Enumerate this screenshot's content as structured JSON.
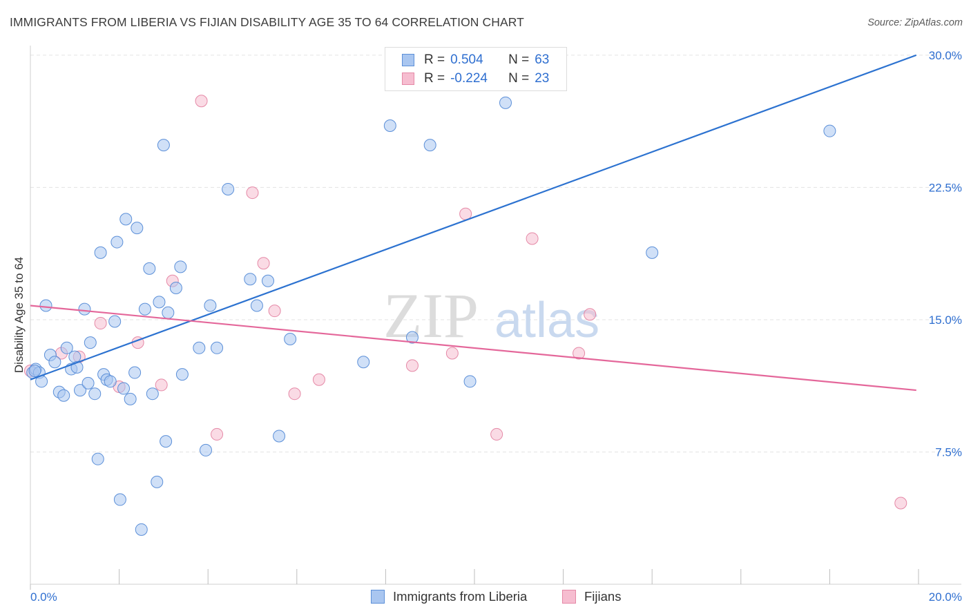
{
  "header": {
    "title": "IMMIGRANTS FROM LIBERIA VS FIJIAN DISABILITY AGE 35 TO 64 CORRELATION CHART",
    "source": "Source: ZipAtlas.com"
  },
  "watermark": {
    "zip": "ZIP",
    "atlas": "atlas"
  },
  "colors": {
    "blue_fill": "#a9c6f0",
    "blue_stroke": "#5b8fd8",
    "blue_line": "#2c72d0",
    "pink_fill": "#f6bdd0",
    "pink_stroke": "#e588a6",
    "pink_line": "#e4679a",
    "value_text": "#2f6fd0",
    "grid": "#e3e3e3"
  },
  "legend": {
    "rows": [
      {
        "r_label": "R =",
        "r_value": "0.504",
        "n_label": "N =",
        "n_value": "63"
      },
      {
        "r_label": "R =",
        "r_value": "-0.224",
        "n_label": "N =",
        "n_value": "23"
      }
    ]
  },
  "bottom_legend": {
    "series1": "Immigrants from Liberia",
    "series2": "Fijians"
  },
  "chart_data": {
    "type": "scatter",
    "title": "IMMIGRANTS FROM LIBERIA VS FIJIAN DISABILITY AGE 35 TO 64 CORRELATION CHART",
    "xlabel": "",
    "ylabel": "Disability Age 35 to 64",
    "xlim": [
      0,
      20
    ],
    "ylim": [
      0,
      30.7
    ],
    "x_tick_labels": [
      {
        "value": 0,
        "label": "0.0%"
      },
      {
        "value": 20,
        "label": "20.0%"
      }
    ],
    "y_tick_labels": [
      {
        "value": 7.5,
        "label": "7.5%"
      },
      {
        "value": 15,
        "label": "15.0%"
      },
      {
        "value": 22.5,
        "label": "22.5%"
      },
      {
        "value": 30,
        "label": "30.0%"
      }
    ],
    "x_minor_ticks": [
      2,
      4,
      6,
      8,
      10,
      12,
      14,
      16,
      18,
      20
    ],
    "grid": true,
    "legend_position": "top-center",
    "series": [
      {
        "name": "Immigrants from Liberia",
        "color": "#a9c6f0",
        "r": 0.504,
        "n": 63,
        "trend": {
          "x": [
            0,
            19.95
          ],
          "y": [
            11.6,
            30.0
          ]
        },
        "points": [
          [
            0.05,
            12.0
          ],
          [
            0.12,
            12.2
          ],
          [
            0.2,
            12.0
          ],
          [
            0.25,
            11.5
          ],
          [
            0.35,
            15.8
          ],
          [
            0.45,
            13.0
          ],
          [
            0.55,
            12.6
          ],
          [
            0.65,
            10.9
          ],
          [
            0.75,
            10.7
          ],
          [
            0.82,
            13.4
          ],
          [
            0.92,
            12.2
          ],
          [
            1.0,
            12.9
          ],
          [
            1.05,
            12.3
          ],
          [
            1.12,
            11.0
          ],
          [
            1.22,
            15.6
          ],
          [
            1.3,
            11.4
          ],
          [
            1.35,
            13.7
          ],
          [
            1.45,
            10.8
          ],
          [
            1.52,
            7.1
          ],
          [
            1.58,
            18.8
          ],
          [
            1.65,
            11.9
          ],
          [
            1.72,
            11.6
          ],
          [
            1.8,
            11.5
          ],
          [
            1.9,
            14.9
          ],
          [
            1.95,
            19.4
          ],
          [
            2.02,
            4.8
          ],
          [
            2.1,
            11.1
          ],
          [
            2.15,
            20.7
          ],
          [
            2.25,
            10.5
          ],
          [
            2.35,
            12.0
          ],
          [
            2.4,
            20.2
          ],
          [
            2.5,
            3.1
          ],
          [
            2.58,
            15.6
          ],
          [
            2.68,
            17.9
          ],
          [
            2.75,
            10.8
          ],
          [
            2.85,
            5.8
          ],
          [
            2.9,
            16.0
          ],
          [
            3.0,
            24.9
          ],
          [
            3.05,
            8.1
          ],
          [
            3.1,
            15.4
          ],
          [
            3.28,
            16.8
          ],
          [
            3.38,
            18.0
          ],
          [
            3.42,
            11.9
          ],
          [
            3.8,
            13.4
          ],
          [
            3.95,
            7.6
          ],
          [
            4.05,
            15.8
          ],
          [
            4.2,
            13.4
          ],
          [
            4.45,
            22.4
          ],
          [
            4.95,
            17.3
          ],
          [
            5.1,
            15.8
          ],
          [
            5.35,
            17.2
          ],
          [
            5.6,
            8.4
          ],
          [
            5.85,
            13.9
          ],
          [
            7.5,
            12.6
          ],
          [
            8.1,
            26.0
          ],
          [
            8.6,
            14.0
          ],
          [
            9.0,
            24.9
          ],
          [
            9.1,
            28.4
          ],
          [
            9.9,
            11.5
          ],
          [
            10.7,
            27.3
          ],
          [
            14.0,
            18.8
          ],
          [
            18.0,
            25.7
          ],
          [
            0.1,
            12.1
          ]
        ]
      },
      {
        "name": "Fijians",
        "color": "#f6bdd0",
        "r": -0.224,
        "n": 23,
        "trend": {
          "x": [
            0,
            19.95
          ],
          "y": [
            15.8,
            11.0
          ]
        },
        "points": [
          [
            0.0,
            12.1
          ],
          [
            0.7,
            13.1
          ],
          [
            1.1,
            12.9
          ],
          [
            1.58,
            14.8
          ],
          [
            2.0,
            11.2
          ],
          [
            2.42,
            13.7
          ],
          [
            2.95,
            11.3
          ],
          [
            3.2,
            17.2
          ],
          [
            3.85,
            27.4
          ],
          [
            4.2,
            8.5
          ],
          [
            5.0,
            22.2
          ],
          [
            5.25,
            18.2
          ],
          [
            5.5,
            15.5
          ],
          [
            5.95,
            10.8
          ],
          [
            6.5,
            11.6
          ],
          [
            8.6,
            12.4
          ],
          [
            9.8,
            21.0
          ],
          [
            9.5,
            13.1
          ],
          [
            10.5,
            8.5
          ],
          [
            11.3,
            19.6
          ],
          [
            12.35,
            13.1
          ],
          [
            12.6,
            15.3
          ],
          [
            19.6,
            4.6
          ]
        ]
      }
    ]
  }
}
